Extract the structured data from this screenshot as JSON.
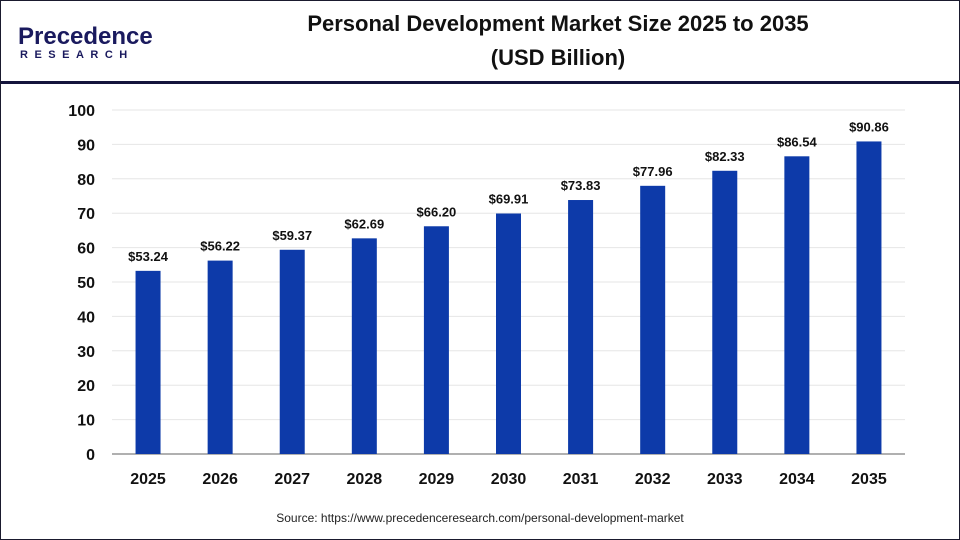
{
  "logo": {
    "brand_top": "Precedence",
    "brand_bottom": "RESEARCH"
  },
  "colors": {
    "bar": "#0d3aa9",
    "header_rule": "#14143c",
    "grid": "#e6e6e6",
    "axis": "#b0b0b0",
    "logo_dark": "#1a1a5e",
    "logo_blue": "#2f6fe0"
  },
  "chart_data": {
    "type": "bar",
    "title_line1": "Personal Development Market Size 2025 to 2035",
    "title_line2": "(USD Billion)",
    "categories": [
      "2025",
      "2026",
      "2027",
      "2028",
      "2029",
      "2030",
      "2031",
      "2032",
      "2033",
      "2034",
      "2035"
    ],
    "values": [
      53.24,
      56.22,
      59.37,
      62.69,
      66.2,
      69.91,
      73.83,
      77.96,
      82.33,
      86.54,
      90.86
    ],
    "data_labels": [
      "$53.24",
      "$56.22",
      "$59.37",
      "$62.69",
      "$66.20",
      "$69.91",
      "$73.83",
      "$77.96",
      "$82.33",
      "$86.54",
      "$90.86"
    ],
    "yticks": [
      "0",
      "10",
      "20",
      "30",
      "40",
      "50",
      "60",
      "70",
      "80",
      "90",
      "100"
    ],
    "ylim": [
      0,
      100
    ],
    "grid": true,
    "legend": "none"
  },
  "source": "Source: https://www.precedenceresearch.com/personal-development-market"
}
